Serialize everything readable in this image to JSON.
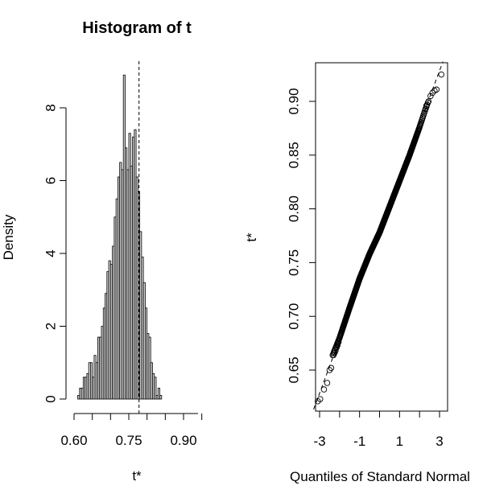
{
  "chart_data": [
    {
      "type": "bar",
      "title": "Histogram of t",
      "xlabel": "t*",
      "ylabel": "Density",
      "xlim": [
        0.59,
        0.95
      ],
      "ylim": [
        0,
        9
      ],
      "x_ticks": [
        0.6,
        0.75,
        0.9
      ],
      "x_tick_labels": [
        "0.60",
        "0.75",
        "0.90"
      ],
      "y_ticks": [
        0,
        2,
        4,
        6,
        8
      ],
      "y_tick_labels": [
        "0",
        "2",
        "4",
        "6",
        "8"
      ],
      "vline": 0.778,
      "bin_width": 0.005,
      "bin_start": 0.61,
      "values": [
        0.1,
        0.3,
        0.3,
        0.6,
        0.6,
        0.7,
        1.0,
        1.0,
        0.6,
        1.2,
        1.0,
        1.7,
        1.7,
        2.0,
        2.5,
        2.9,
        3.5,
        3.8,
        3.7,
        4.2,
        5.0,
        5.5,
        6.1,
        6.5,
        6.3,
        8.9,
        6.9,
        6.3,
        7.3,
        6.4,
        7.2,
        7.4,
        6.1,
        5.7,
        4.6,
        3.9,
        3.2,
        2.5,
        1.8,
        1.7,
        1.0,
        0.7,
        0.6,
        0.1,
        0.3,
        0.1
      ]
    },
    {
      "type": "scatter",
      "title": "",
      "xlabel": "Quantiles of Standard Normal",
      "ylabel": "t*",
      "xlim": [
        -3.3,
        3.3
      ],
      "ylim": [
        0.618,
        0.937
      ],
      "x_ticks": [
        -3,
        -2,
        -1,
        0,
        1,
        2,
        3
      ],
      "x_tick_labels": [
        "-3",
        "",
        "-1",
        "",
        "1",
        "",
        "3"
      ],
      "y_ticks": [
        0.65,
        0.7,
        0.75,
        0.8,
        0.85,
        0.9
      ],
      "y_tick_labels": [
        "0.65",
        "0.70",
        "0.75",
        "0.80",
        "0.85",
        "0.90"
      ],
      "reference_line": {
        "intercept": 0.7785,
        "slope": 0.05
      },
      "n_points": 999,
      "x_extreme": [
        -3.09,
        3.09
      ],
      "y_tail_points": {
        "low": [
          [
            -3.09,
            0.621
          ],
          [
            -2.97,
            0.623
          ],
          [
            -2.78,
            0.632
          ],
          [
            -2.62,
            0.638
          ],
          [
            -2.5,
            0.65
          ],
          [
            -2.42,
            0.652
          ]
        ],
        "high": [
          [
            2.45,
            0.9
          ],
          [
            2.55,
            0.905
          ],
          [
            2.65,
            0.908
          ],
          [
            2.75,
            0.91
          ],
          [
            2.85,
            0.911
          ],
          [
            3.09,
            0.925
          ]
        ]
      },
      "quantile_curve": [
        [
          -2.3,
          0.666
        ],
        [
          -2.0,
          0.68
        ],
        [
          -1.5,
          0.708
        ],
        [
          -1.0,
          0.735
        ],
        [
          -0.5,
          0.758
        ],
        [
          0.0,
          0.778
        ],
        [
          0.5,
          0.802
        ],
        [
          1.0,
          0.826
        ],
        [
          1.5,
          0.85
        ],
        [
          2.0,
          0.876
        ],
        [
          2.3,
          0.893
        ]
      ]
    }
  ],
  "colors": {
    "bar_fill": "#d3d3d3",
    "stroke": "#000000"
  }
}
